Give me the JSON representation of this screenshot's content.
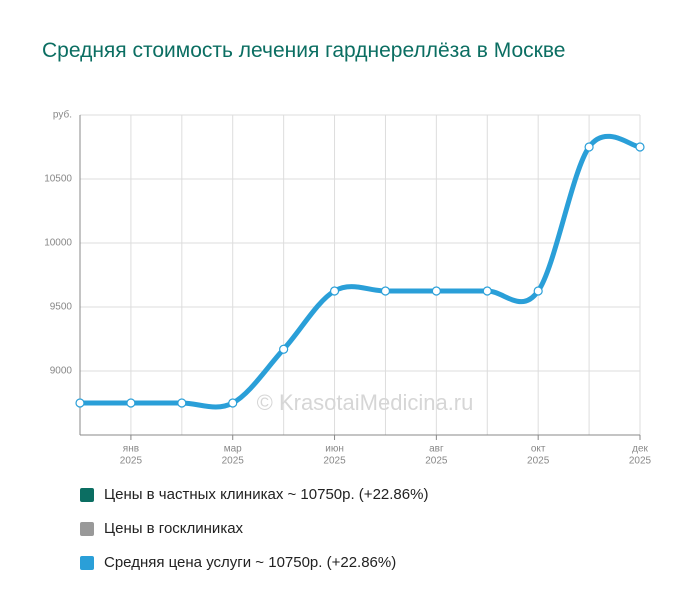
{
  "chart_data": {
    "type": "line",
    "title": "Средняя стоимость лечения гарднереллёза в Москве",
    "watermark": "© KrasotaiMedicina.ru",
    "categories": [
      null,
      "янв",
      null,
      "мар",
      null,
      "июн",
      null,
      "авг",
      null,
      "окт",
      null,
      "дек"
    ],
    "category_years": [
      null,
      "2025",
      null,
      "2025",
      null,
      "2025",
      null,
      "2025",
      null,
      "2025",
      null,
      "2025"
    ],
    "series": [
      {
        "name": "Средняя цена услуги",
        "color": "#2a9fd8",
        "values": [
          8750,
          8750,
          8750,
          8750,
          9170,
          9625,
          9625,
          9625,
          9625,
          9625,
          10750,
          10750
        ]
      }
    ],
    "legend": [
      {
        "name": "Цены в частных клиниках ~ 10750р. (+22.86%)",
        "color": "#0b6e62"
      },
      {
        "name": "Цены в госклиниках",
        "color": "#999999"
      },
      {
        "name": "Средняя цена услуги ~ 10750р. (+22.86%)",
        "color": "#2a9fd8"
      }
    ],
    "ylim": [
      8500,
      11000
    ],
    "yticks": [
      9000,
      9500,
      10000,
      10500,
      {
        "value": 11000,
        "label": "руб."
      }
    ],
    "grid": true
  }
}
